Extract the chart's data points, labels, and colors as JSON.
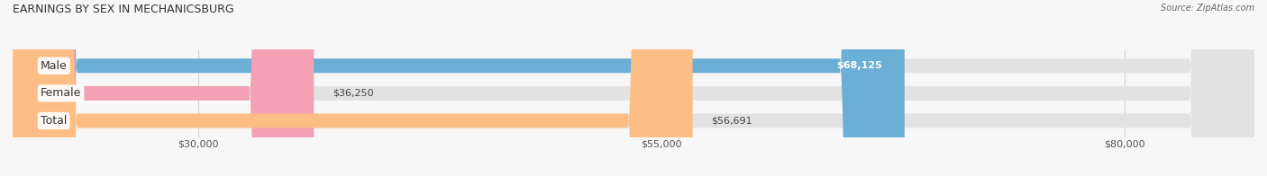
{
  "title": "EARNINGS BY SEX IN MECHANICSBURG",
  "source": "Source: ZipAtlas.com",
  "categories": [
    "Male",
    "Female",
    "Total"
  ],
  "values": [
    68125,
    36250,
    56691
  ],
  "bar_colors": [
    "#6baed6",
    "#f4a0b5",
    "#fdbe85"
  ],
  "label_inside": [
    true,
    false,
    false
  ],
  "xlim_min": 20000,
  "xlim_max": 87000,
  "xticks": [
    30000,
    55000,
    80000
  ],
  "xtick_labels": [
    "$30,000",
    "$55,000",
    "$80,000"
  ],
  "bar_height": 0.52,
  "figsize": [
    14.06,
    1.96
  ],
  "dpi": 100,
  "title_fontsize": 9,
  "tick_fontsize": 8,
  "label_fontsize": 8,
  "category_fontsize": 9
}
